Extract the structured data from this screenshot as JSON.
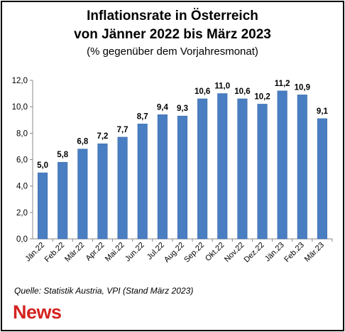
{
  "title_line1": "Inflationsrate  in Österreich",
  "title_line2": "von Jänner 2022 bis März 2023",
  "subtitle": "(% gegenüber dem Vorjahresmonat)",
  "source": "Quelle: Statistik Austria, VPI (Stand März 2023)",
  "logo": "News",
  "colors": {
    "bar": "#4a7ec2",
    "bar_edge": "#3b6bab",
    "axis": "#888888",
    "logo": "#d4231f"
  },
  "chart_data": {
    "type": "bar",
    "categories": [
      "Jän.22",
      "Feb.22",
      "Mär.22",
      "Apr.22",
      "Mai.22",
      "Jun.22",
      "Jul.22",
      "Aug.22",
      "Sep.22",
      "Okt.22",
      "Nov.22",
      "Dez.22",
      "Jän.23",
      "Feb.23",
      "Mär.23"
    ],
    "values": [
      5.0,
      5.8,
      6.8,
      7.2,
      7.7,
      8.7,
      9.4,
      9.3,
      10.6,
      11.0,
      10.6,
      10.2,
      11.2,
      10.9,
      9.1
    ],
    "value_labels": [
      "5,0",
      "5,8",
      "6,8",
      "7,2",
      "7,7",
      "8,7",
      "9,4",
      "9,3",
      "10,6",
      "11,0",
      "10,6",
      "10,2",
      "11,2",
      "10,9",
      "9,1"
    ],
    "yticks": [
      0,
      2,
      4,
      6,
      8,
      10,
      12
    ],
    "ytick_labels": [
      "0,0",
      "2,0",
      "4,0",
      "6,0",
      "8,0",
      "10,0",
      "12,0"
    ],
    "ylim": [
      0,
      12
    ],
    "grid": false,
    "legend": "none"
  }
}
